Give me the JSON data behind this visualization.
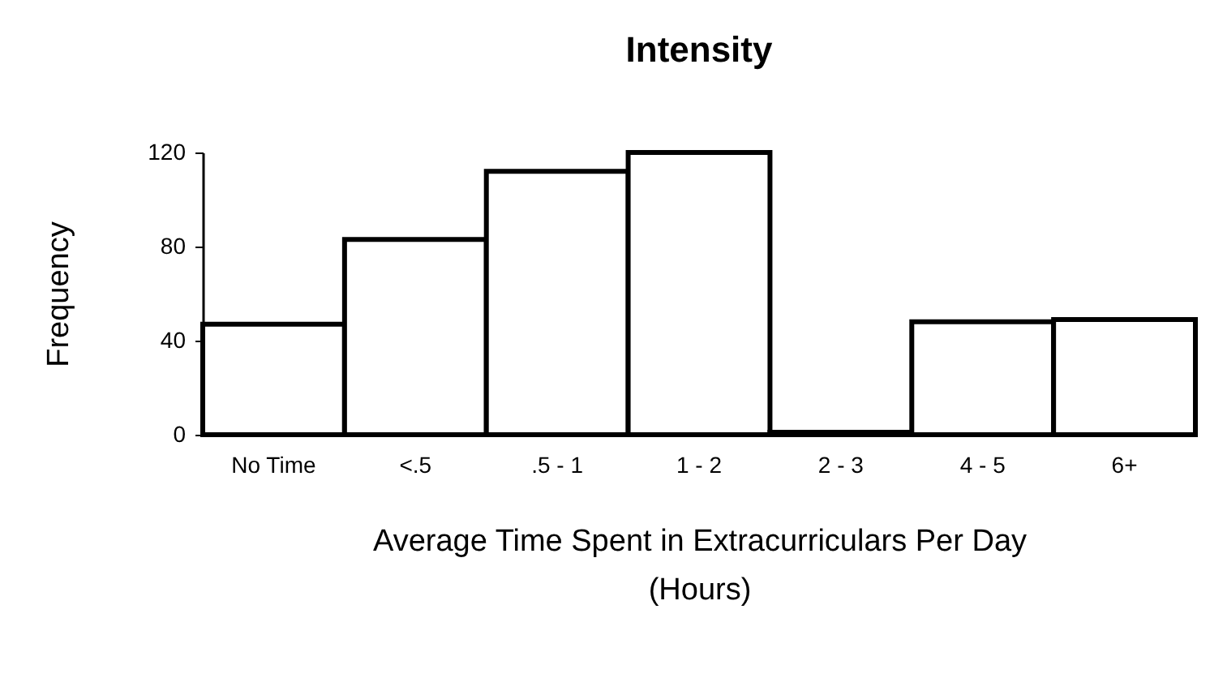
{
  "chart_data": {
    "type": "bar",
    "title": "Intensity",
    "xlabel": "Average Time Spent in Extracurriculars Per Day (Hours)",
    "ylabel": "Frequency",
    "categories": [
      "No Time",
      "<.5",
      ".5 - 1",
      "1 - 2",
      "2 - 3",
      "4 - 5",
      "6+"
    ],
    "values": [
      47,
      83,
      112,
      120,
      1,
      48,
      49
    ],
    "color": "#ffffff",
    "ylim": [
      0,
      120
    ],
    "yticks": [
      0,
      40,
      80,
      120
    ],
    "grid": false
  }
}
